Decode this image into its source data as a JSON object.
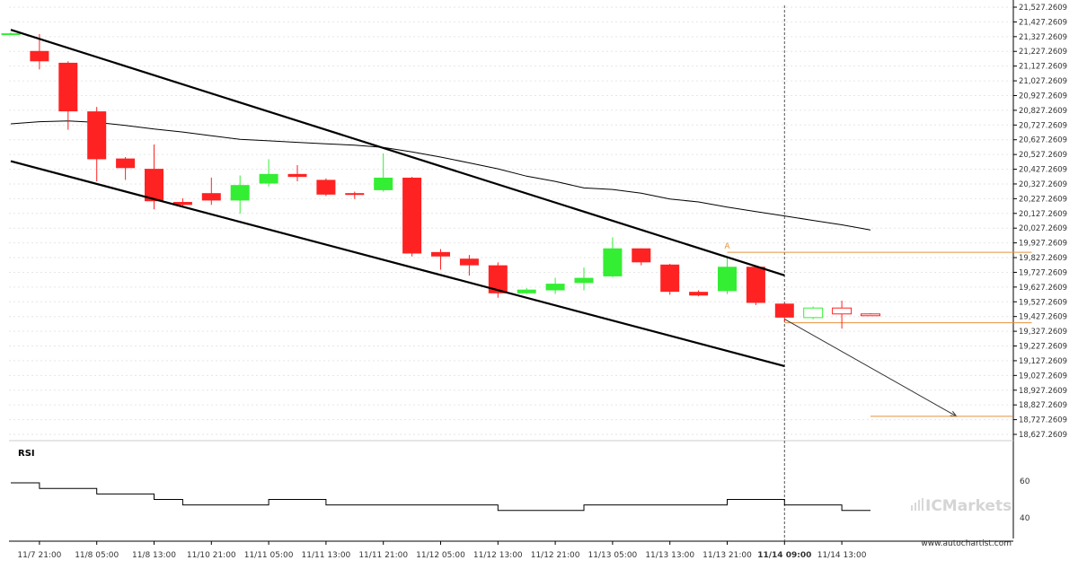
{
  "chart_data": {
    "type": "candlestick",
    "price_axis": {
      "ylim": [
        18627.2609,
        21527.2609
      ],
      "tick_labels": [
        "21,527.2609",
        "21,427.2609",
        "21,327.2609",
        "21,227.2609",
        "21,127.2609",
        "21,027.2609",
        "20,927.2609",
        "20,827.2609",
        "20,727.2609",
        "20,627.2609",
        "20,527.2609",
        "20,427.2609",
        "20,327.2609",
        "20,227.2609",
        "20,127.2609",
        "20,027.2609",
        "19,927.2609",
        "19,827.2609",
        "19,727.2609",
        "19,627.2609",
        "19,527.2609",
        "19,427.2609",
        "19,327.2609",
        "19,227.2609",
        "19,127.2609",
        "19,027.2609",
        "18,927.2609",
        "18,827.2609",
        "18,727.2609",
        "18,627.2609"
      ]
    },
    "time_axis": {
      "tick_labels": [
        "11/7 21:00",
        "11/8 05:00",
        "11/8 13:00",
        "11/10 21:00",
        "11/11 05:00",
        "11/11 13:00",
        "11/11 21:00",
        "11/12 05:00",
        "11/12 13:00",
        "11/12 21:00",
        "11/13 05:00",
        "11/13 13:00",
        "11/13 21:00",
        "11/14 09:00",
        "11/14 13:00"
      ],
      "tick_bar_index": [
        1,
        3,
        5,
        7,
        9,
        11,
        13,
        15,
        17,
        19,
        21,
        23,
        25,
        27,
        29
      ],
      "highlighted_label": "11/14 09:00"
    },
    "candles": [
      {
        "o": 21347,
        "h": 21355,
        "l": 21340,
        "c": 21350
      },
      {
        "o": 21230,
        "h": 21345,
        "l": 21105,
        "c": 21160
      },
      {
        "o": 21150,
        "h": 21160,
        "l": 20695,
        "c": 20820
      },
      {
        "o": 20820,
        "h": 20850,
        "l": 20345,
        "c": 20495
      },
      {
        "o": 20500,
        "h": 20510,
        "l": 20355,
        "c": 20435
      },
      {
        "o": 20430,
        "h": 20595,
        "l": 20155,
        "c": 20210
      },
      {
        "o": 20205,
        "h": 20230,
        "l": 20170,
        "c": 20185
      },
      {
        "o": 20265,
        "h": 20370,
        "l": 20185,
        "c": 20215
      },
      {
        "o": 20215,
        "h": 20385,
        "l": 20125,
        "c": 20320
      },
      {
        "o": 20330,
        "h": 20495,
        "l": 20310,
        "c": 20395
      },
      {
        "o": 20395,
        "h": 20455,
        "l": 20345,
        "c": 20375
      },
      {
        "o": 20355,
        "h": 20365,
        "l": 20245,
        "c": 20255
      },
      {
        "o": 20265,
        "h": 20275,
        "l": 20225,
        "c": 20255
      },
      {
        "o": 20285,
        "h": 20535,
        "l": 20275,
        "c": 20370
      },
      {
        "o": 20370,
        "h": 20375,
        "l": 19835,
        "c": 19855
      },
      {
        "o": 19865,
        "h": 19885,
        "l": 19745,
        "c": 19835
      },
      {
        "o": 19820,
        "h": 19845,
        "l": 19705,
        "c": 19775
      },
      {
        "o": 19775,
        "h": 19795,
        "l": 19555,
        "c": 19585
      },
      {
        "o": 19585,
        "h": 19620,
        "l": 19580,
        "c": 19610
      },
      {
        "o": 19605,
        "h": 19690,
        "l": 19580,
        "c": 19650
      },
      {
        "o": 19655,
        "h": 19760,
        "l": 19605,
        "c": 19690
      },
      {
        "o": 19700,
        "h": 19965,
        "l": 19695,
        "c": 19890
      },
      {
        "o": 19890,
        "h": 19890,
        "l": 19775,
        "c": 19795
      },
      {
        "o": 19780,
        "h": 19785,
        "l": 19575,
        "c": 19595
      },
      {
        "o": 19595,
        "h": 19605,
        "l": 19565,
        "c": 19570
      },
      {
        "o": 19600,
        "h": 19835,
        "l": 19580,
        "c": 19765
      },
      {
        "o": 19765,
        "h": 19775,
        "l": 19505,
        "c": 19520
      },
      {
        "o": 19515,
        "h": 19520,
        "l": 19395,
        "c": 19420
      },
      {
        "o": 19420,
        "h": 19495,
        "l": 19410,
        "c": 19485
      },
      {
        "o": 19485,
        "h": 19535,
        "l": 19345,
        "c": 19445
      },
      {
        "o": 19445,
        "h": 19450,
        "l": 19437,
        "c": 19442
      }
    ],
    "moving_average": [
      20735,
      20750,
      20755,
      20745,
      20725,
      20700,
      20680,
      20655,
      20630,
      20620,
      20610,
      20600,
      20590,
      20575,
      20545,
      20510,
      20470,
      20430,
      20380,
      20345,
      20300,
      20290,
      20265,
      20225,
      20205,
      20170,
      20140,
      20110,
      20080,
      20050,
      20015
    ],
    "channel_lines": [
      {
        "from": {
          "bar": 0,
          "price": 21374
        },
        "to": {
          "bar": 27,
          "price": 19707
        }
      },
      {
        "from": {
          "bar": 0,
          "price": 20482
        },
        "to": {
          "bar": 27,
          "price": 19091
        }
      }
    ],
    "projection": {
      "start": {
        "bar": 27,
        "price": 19410
      },
      "end": {
        "bar": 33,
        "price": 18750
      },
      "target_price": 18750,
      "target_line_range": [
        30,
        33
      ]
    },
    "levels": [
      {
        "price": 19863,
        "from_bar": 25,
        "to_bar": 35,
        "label": "A"
      },
      {
        "price": 19385,
        "from_bar": 27,
        "to_bar": 35,
        "label": ""
      }
    ],
    "rsi": {
      "label": "RSI",
      "ylim": [
        35,
        75
      ],
      "ticks": [
        60,
        40
      ],
      "values": [
        59,
        56,
        56,
        53,
        53,
        50,
        47,
        47,
        47,
        50,
        50,
        47,
        47,
        47,
        47,
        47,
        47,
        44,
        44,
        44,
        47,
        47,
        47,
        47,
        47,
        50,
        50,
        47,
        47,
        44,
        44
      ]
    },
    "colors": {
      "bull": "#33ee33",
      "bear": "#ff2222",
      "ma": "#000000",
      "channel": "#000000",
      "level": "#e8913c",
      "grid": "#e6e6e6"
    }
  },
  "watermark": "ICMarkets",
  "footer_url": "www.autochartist.com"
}
